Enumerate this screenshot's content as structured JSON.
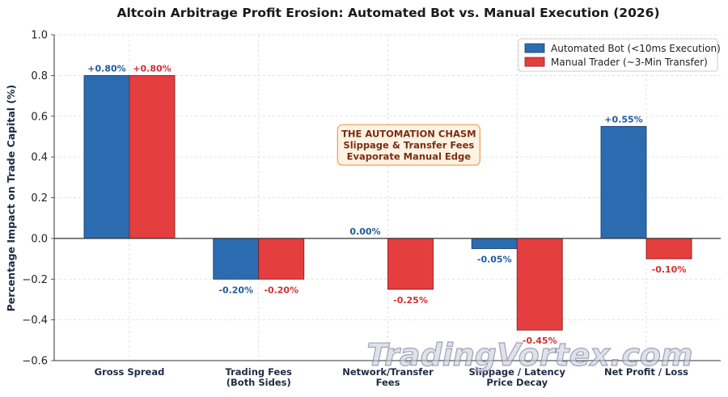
{
  "chart_data": {
    "type": "bar",
    "title": "Altcoin Arbitrage Profit Erosion: Automated Bot vs. Manual Execution (2026)",
    "ylabel": "Percentage Impact on Trade Capital (%)",
    "xlabel": "",
    "ylim": [
      -0.6,
      1.0
    ],
    "yticks": [
      -0.6,
      -0.4,
      -0.2,
      0.0,
      0.2,
      0.4,
      0.6,
      0.8,
      1.0
    ],
    "ytick_labels": [
      "−0.6",
      "−0.4",
      "−0.2",
      "0.0",
      "0.2",
      "0.4",
      "0.6",
      "0.8",
      "1.0"
    ],
    "grid": true,
    "legend_position": "top-right",
    "categories": [
      [
        "Gross Spread"
      ],
      [
        "Trading Fees",
        "(Both Sides)"
      ],
      [
        "Network/Transfer",
        "Fees"
      ],
      [
        "Slippage / Latency",
        "Price Decay"
      ],
      [
        "Net Profit / Loss"
      ]
    ],
    "series": [
      {
        "name": "Automated Bot (<10ms Execution)",
        "color": "#2b6cb0",
        "values": [
          0.8,
          -0.2,
          0.0,
          -0.05,
          0.55
        ],
        "labels": [
          "+0.80%",
          "-0.20%",
          "0.00%",
          "-0.05%",
          "+0.55%"
        ]
      },
      {
        "name": "Manual Trader (~3-Min Transfer)",
        "color": "#e53e3e",
        "values": [
          0.8,
          -0.2,
          -0.25,
          -0.45,
          -0.1
        ],
        "labels": [
          "+0.80%",
          "-0.20%",
          "-0.25%",
          "-0.45%",
          "-0.10%"
        ]
      }
    ],
    "annotation": {
      "lines": [
        "THE AUTOMATION CHASM",
        "Slippage & Transfer Fees",
        "Evaporate Manual Edge"
      ],
      "text_color": "#7b2e12",
      "box_fill": "#fdf3e3",
      "box_border": "#f0a35e",
      "x_anchor_category": 2.6,
      "y_anchor_value": 0.32
    },
    "watermark": "TradingVortex.com"
  }
}
